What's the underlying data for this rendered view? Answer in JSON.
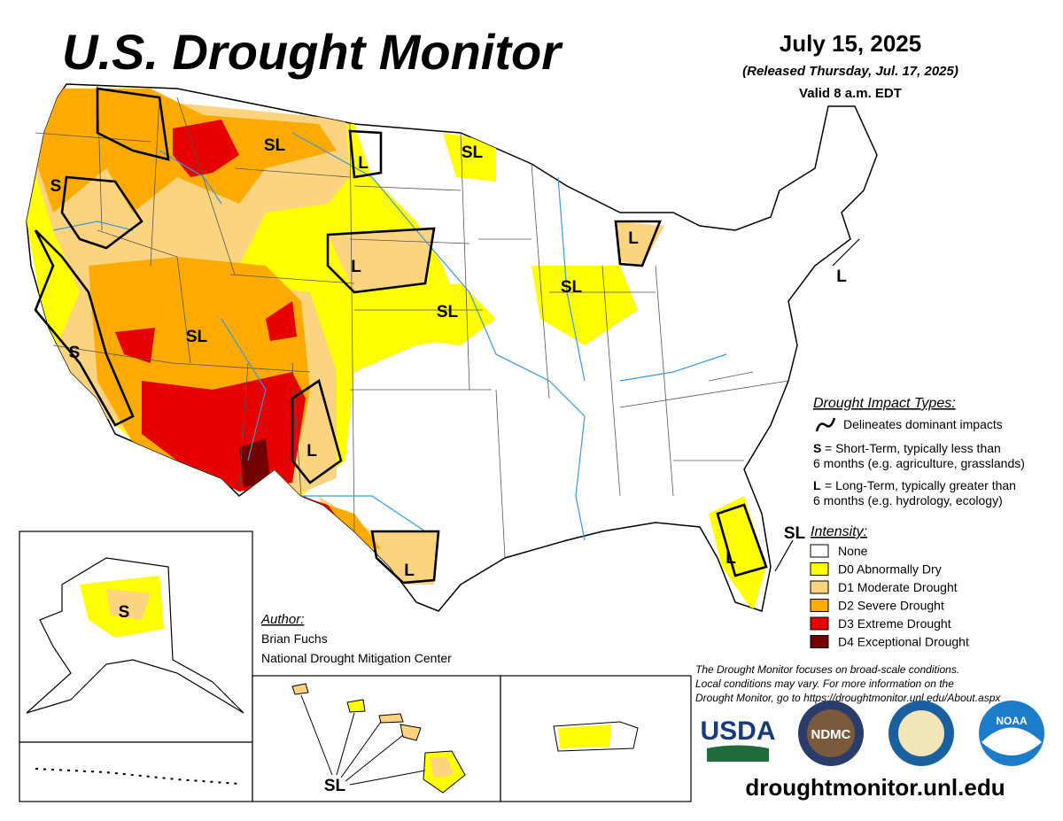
{
  "header": {
    "title": "U.S. Drought Monitor",
    "date": "July 15, 2025",
    "released": "(Released Thursday, Jul. 17, 2025)",
    "valid": "Valid 8 a.m. EDT"
  },
  "impact_types": {
    "heading": "Drought Impact Types:",
    "delineates": "Delineates dominant impacts",
    "short_term": {
      "code": "S",
      "line1": "= Short-Term, typically less than",
      "line2": "6 months (e.g. agriculture, grasslands)"
    },
    "long_term": {
      "code": "L",
      "line1": "= Long-Term, typically greater than",
      "line2": "6 months (e.g. hydrology, ecology)"
    }
  },
  "intensity": {
    "heading": "Intensity:",
    "levels": [
      {
        "label": "None",
        "color": "#ffffff"
      },
      {
        "label": "D0 Abnormally Dry",
        "color": "#ffff00"
      },
      {
        "label": "D1 Moderate Drought",
        "color": "#fcd37f"
      },
      {
        "label": "D2 Severe Drought",
        "color": "#ffaa00"
      },
      {
        "label": "D3 Extreme Drought",
        "color": "#e60000"
      },
      {
        "label": "D4 Exceptional Drought",
        "color": "#730000"
      }
    ]
  },
  "author": {
    "heading": "Author:",
    "name": "Brian Fuchs",
    "org": "National Drought Mitigation Center"
  },
  "disclaimer": [
    "The Drought Monitor focuses on broad-scale conditions.",
    "Local conditions may vary. For more information on the",
    "Drought Monitor, go to https://droughtmonitor.unl.edu/About.aspx"
  ],
  "logos": [
    "USDA",
    "NDMC",
    "NOAA"
  ],
  "url": "droughtmonitor.unl.edu",
  "map_labels": [
    "SL",
    "L",
    "SL",
    "S",
    "L",
    "L",
    "SL",
    "SL",
    "S",
    "SL",
    "L",
    "L",
    "L",
    "L",
    "SL",
    "S",
    "SL"
  ]
}
